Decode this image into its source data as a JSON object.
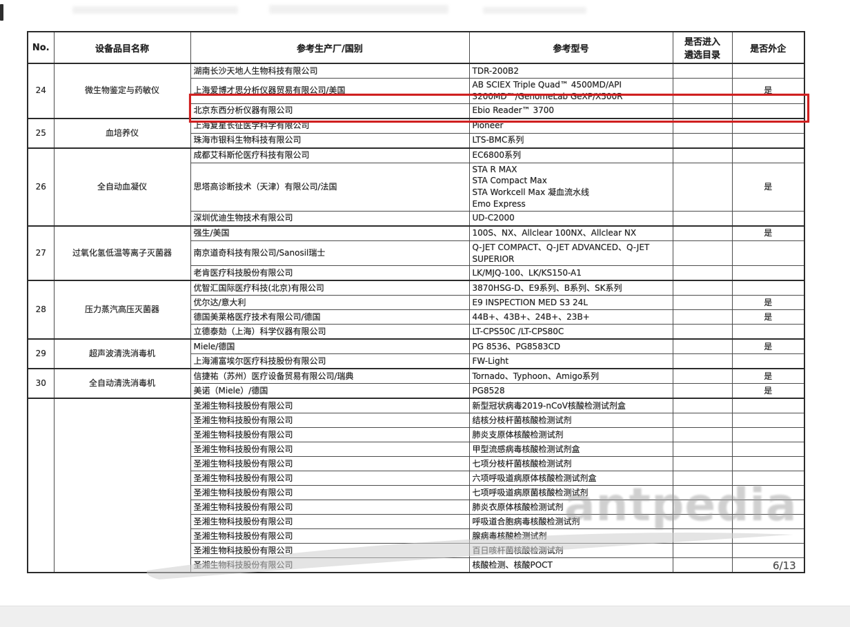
{
  "page": {
    "watermark": "antpedia",
    "page_number": "6/13"
  },
  "table": {
    "headers": [
      "No.",
      "设备品目名称",
      "参考生产厂/国别",
      "参考型号",
      "是否进入\n遴选目录",
      "是否外企"
    ],
    "groups": [
      {
        "no": "24",
        "name": "微生物鉴定与药敏仪",
        "rows": [
          {
            "manufacturer": "湖南长沙天地人生物科技有限公司",
            "model": "TDR-200B2",
            "catalog": "",
            "foreign": ""
          },
          {
            "manufacturer": "上海爱博才思分析仪器贸易有限公司/美国",
            "model": "AB SCIEX Triple Quad™ 4500MD/API\n3200MD™/GenomeLab GeXP/X500R",
            "catalog": "",
            "foreign": "是"
          },
          {
            "manufacturer": "北京东西分析仪器有限公司",
            "model": "Ebio Reader™ 3700",
            "catalog": "",
            "foreign": "",
            "highlight": true
          }
        ]
      },
      {
        "no": "25",
        "name": "血培养仪",
        "rows": [
          {
            "manufacturer": "上海复星长征医学科学有限公司",
            "model": "Pioneer",
            "catalog": "",
            "foreign": ""
          },
          {
            "manufacturer": "珠海市银科生物科技有限公司",
            "model": "LTS-BMC系列",
            "catalog": "",
            "foreign": ""
          }
        ]
      },
      {
        "no": "26",
        "name": "全自动血凝仪",
        "rows": [
          {
            "manufacturer": "成都艾科斯伦医疗科技有限公司",
            "model": "EC6800系列",
            "catalog": "",
            "foreign": ""
          },
          {
            "manufacturer": "思塔高诊断技术（天津）有限公司/法国",
            "model": "STA R MAX\nSTA Compact Max\nSTA Workcell Max 凝血流水线\nEmo Express",
            "catalog": "",
            "foreign": "是"
          },
          {
            "manufacturer": "深圳优迪生物技术有限公司",
            "model": "UD-C2000",
            "catalog": "",
            "foreign": ""
          }
        ]
      },
      {
        "no": "27",
        "name": "过氧化氢低温等离子灭菌器",
        "rows": [
          {
            "manufacturer": "强生/美国",
            "model": "100S、NX、Allclear 100NX、Allclear NX",
            "catalog": "",
            "foreign": "是"
          },
          {
            "manufacturer": "南京道奇科技有限公司/Sanosil瑞士",
            "model": "Q-JET COMPACT、Q-JET ADVANCED、Q-JET SUPERIOR",
            "catalog": "",
            "foreign": ""
          },
          {
            "manufacturer": "老肯医疗科技股份有限公司",
            "model": "LK/MJQ-100、LK/KS150-A1",
            "catalog": "",
            "foreign": ""
          }
        ]
      },
      {
        "no": "28",
        "name": "压力蒸汽高压灭菌器",
        "rows": [
          {
            "manufacturer": "优智汇国际医疗科技(北京)有限公司",
            "model": "3870HSG-D、E9系列、B系列、SK系列",
            "catalog": "",
            "foreign": ""
          },
          {
            "manufacturer": "优尔达/意大利",
            "model": "E9 INSPECTION MED S3 24L",
            "catalog": "",
            "foreign": "是"
          },
          {
            "manufacturer": "德国美莱格医疗技术有限公司/德国",
            "model": "44B+、43B+、24B+、23B+",
            "catalog": "",
            "foreign": "是"
          },
          {
            "manufacturer": "立德泰勀（上海）科学仪器有限公司",
            "model": "LT-CPS50C /LT-CPS80C",
            "catalog": "",
            "foreign": ""
          }
        ]
      },
      {
        "no": "29",
        "name": "超声波清洗消毒机",
        "rows": [
          {
            "manufacturer": "Miele/德国",
            "model": "PG 8536、PG8583CD",
            "catalog": "",
            "foreign": "是"
          },
          {
            "manufacturer": "上海浦富埃尔医疗科技股份有限公司",
            "model": "FW-Light",
            "catalog": "",
            "foreign": ""
          }
        ]
      },
      {
        "no": "30",
        "name": "全自动清洗消毒机",
        "rows": [
          {
            "manufacturer": "信捷祐（苏州）医疗设备贸易有限公司/瑞典",
            "model": "Tornado、Typhoon、Amigo系列",
            "catalog": "",
            "foreign": "是"
          },
          {
            "manufacturer": "美诺（Miele）/德国",
            "model": "PG8528",
            "catalog": "",
            "foreign": "是"
          }
        ]
      },
      {
        "no": "",
        "name": "",
        "rows": [
          {
            "manufacturer": "圣湘生物科技股份有限公司",
            "model": "新型冠状病毒2019-nCoV核酸检测试剂盒",
            "catalog": "",
            "foreign": ""
          },
          {
            "manufacturer": "圣湘生物科技股份有限公司",
            "model": "结核分枝杆菌核酸检测试剂",
            "catalog": "",
            "foreign": ""
          },
          {
            "manufacturer": "圣湘生物科技股份有限公司",
            "model": "肺炎支原体核酸检测试剂",
            "catalog": "",
            "foreign": ""
          },
          {
            "manufacturer": "圣湘生物科技股份有限公司",
            "model": "甲型流感病毒核酸检测试剂盒",
            "catalog": "",
            "foreign": ""
          },
          {
            "manufacturer": "圣湘生物科技股份有限公司",
            "model": "七项分枝杆菌核酸检测试剂",
            "catalog": "",
            "foreign": ""
          },
          {
            "manufacturer": "圣湘生物科技股份有限公司",
            "model": "六项呼吸道病原体核酸检测试剂盒",
            "catalog": "",
            "foreign": ""
          },
          {
            "manufacturer": "圣湘生物科技股份有限公司",
            "model": "七项呼吸道病原菌核酸检测试剂",
            "catalog": "",
            "foreign": ""
          },
          {
            "manufacturer": "圣湘生物科技股份有限公司",
            "model": "肺炎衣原体核酸检测试剂",
            "catalog": "",
            "foreign": ""
          },
          {
            "manufacturer": "圣湘生物科技股份有限公司",
            "model": "呼吸道合胞病毒核酸检测试剂",
            "catalog": "",
            "foreign": ""
          },
          {
            "manufacturer": "圣湘生物科技股份有限公司",
            "model": "腺病毒核酸检测试剂",
            "catalog": "",
            "foreign": ""
          },
          {
            "manufacturer": "圣湘生物科技股份有限公司",
            "model": "百日咳杆菌核酸检测试剂",
            "catalog": "",
            "foreign": ""
          },
          {
            "manufacturer": "圣湘生物科技股份有限公司",
            "model": "核酸检测、核酸POCT",
            "catalog": "",
            "foreign": ""
          }
        ]
      }
    ]
  }
}
